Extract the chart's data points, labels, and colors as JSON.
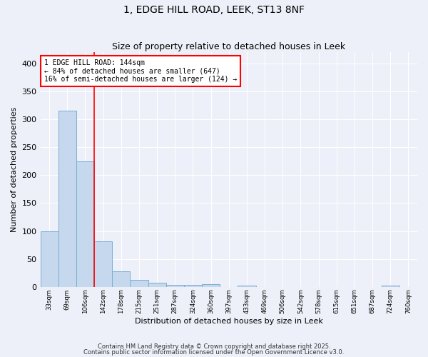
{
  "title1": "1, EDGE HILL ROAD, LEEK, ST13 8NF",
  "title2": "Size of property relative to detached houses in Leek",
  "xlabel": "Distribution of detached houses by size in Leek",
  "ylabel": "Number of detached properties",
  "categories": [
    "33sqm",
    "69sqm",
    "106sqm",
    "142sqm",
    "178sqm",
    "215sqm",
    "251sqm",
    "287sqm",
    "324sqm",
    "360sqm",
    "397sqm",
    "433sqm",
    "469sqm",
    "506sqm",
    "542sqm",
    "578sqm",
    "615sqm",
    "651sqm",
    "687sqm",
    "724sqm",
    "760sqm"
  ],
  "values": [
    100,
    315,
    225,
    82,
    28,
    13,
    7,
    4,
    3,
    5,
    0,
    2,
    0,
    0,
    0,
    0,
    0,
    0,
    0,
    2,
    0
  ],
  "bar_color": "#c5d8ee",
  "bar_edge_color": "#7aadd4",
  "red_line_x": 2.5,
  "annotation_text": "1 EDGE HILL ROAD: 144sqm\n← 84% of detached houses are smaller (647)\n16% of semi-detached houses are larger (124) →",
  "annotation_box_color": "white",
  "annotation_box_edge": "red",
  "ylim": [
    0,
    420
  ],
  "background_color": "#edf0f8",
  "grid_color": "white",
  "yticks": [
    0,
    50,
    100,
    150,
    200,
    250,
    300,
    350,
    400
  ],
  "footer1": "Contains HM Land Registry data © Crown copyright and database right 2025.",
  "footer2": "Contains public sector information licensed under the Open Government Licence v3.0."
}
